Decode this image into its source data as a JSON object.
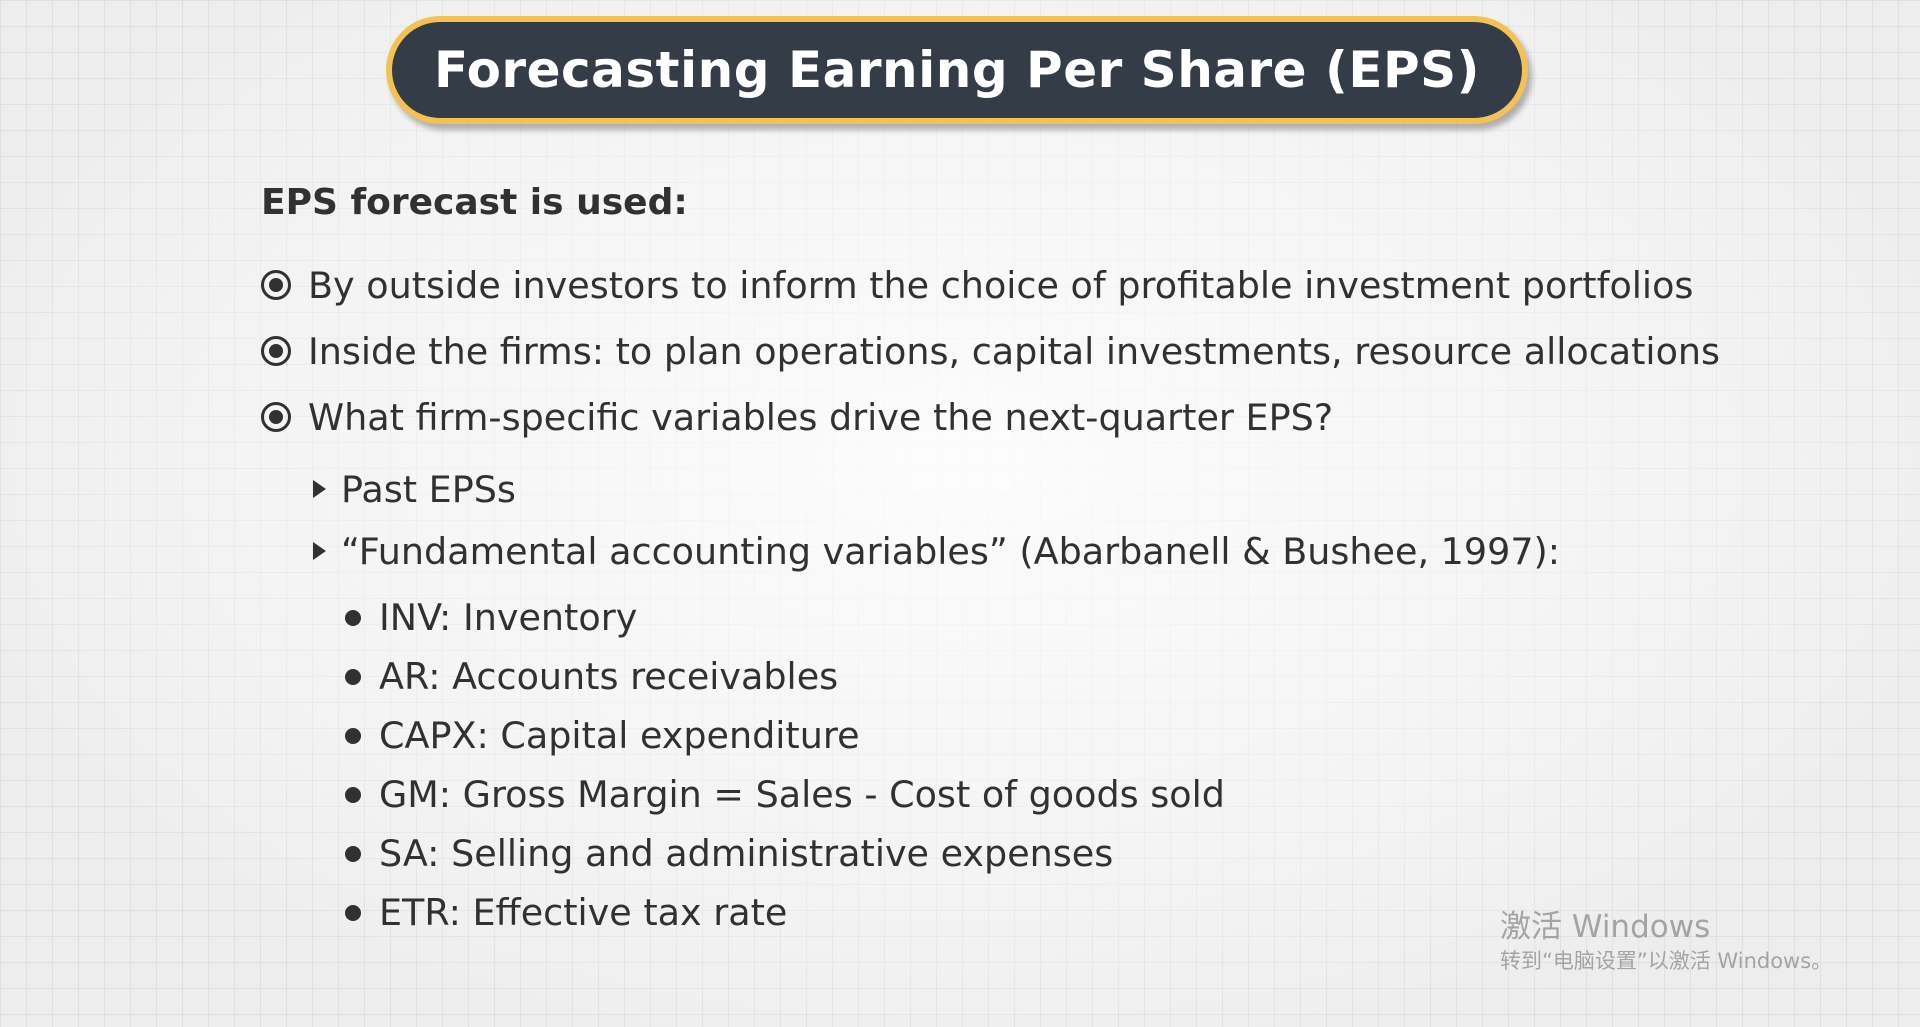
{
  "slide": {
    "title": "Forecasting Earning Per Share (EPS)",
    "intro": "EPS forecast is used:",
    "bullets": [
      "By outside investors to inform the choice of profitable investment portfolios",
      "Inside the firms: to plan operations, capital investments, resource allocations",
      "What firm-specific variables drive the next-quarter EPS?"
    ],
    "sub_bullets": [
      "Past EPSs",
      "“Fundamental accounting variables” (Abarbanell & Bushee, 1997):"
    ],
    "variables": [
      "INV: Inventory",
      "AR: Accounts receivables",
      "CAPX: Capital expenditure",
      "GM: Gross Margin = Sales - Cost of goods sold",
      "SA: Selling and administrative expenses",
      "ETR: Effective tax rate"
    ]
  },
  "watermark": {
    "line1": "激活 Windows",
    "line2": "转到“电脑设置”以激活 Windows。"
  },
  "colors": {
    "title_bg": "#333c47",
    "title_border": "#f4c254",
    "text": "#2f3133"
  },
  "icons": {
    "level1": "radio-bullet-icon",
    "level2": "triangle-bullet-icon",
    "level3": "dot-bullet-icon"
  }
}
